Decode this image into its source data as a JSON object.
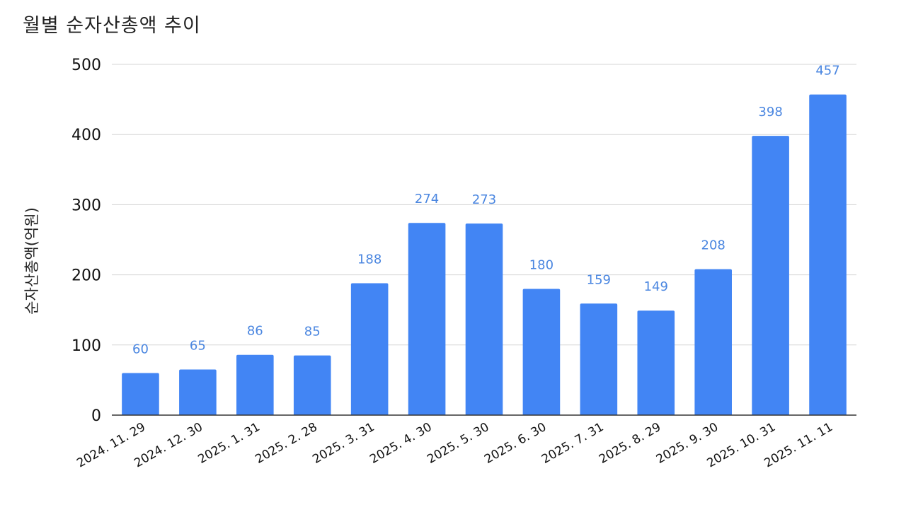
{
  "chart_data": {
    "type": "bar",
    "title": "월별 순자산총액 추이",
    "xlabel": "",
    "ylabel": "순자산총액(억원)",
    "categories": [
      "2024. 11. 29",
      "2024. 12. 30",
      "2025. 1. 31",
      "2025. 2. 28",
      "2025. 3. 31",
      "2025. 4. 30",
      "2025. 5. 30",
      "2025. 6. 30",
      "2025. 7. 31",
      "2025. 8. 29",
      "2025. 9. 30",
      "2025. 10. 31",
      "2025. 11. 11"
    ],
    "values": [
      60,
      65,
      86,
      85,
      188,
      274,
      273,
      180,
      159,
      149,
      208,
      398,
      457
    ],
    "ylim": [
      0,
      500
    ],
    "yticks": [
      0,
      100,
      200,
      300,
      400,
      500
    ],
    "grid": true,
    "legend": "none",
    "bar_color": "#4285f4",
    "label_color": "#4a86e0"
  }
}
